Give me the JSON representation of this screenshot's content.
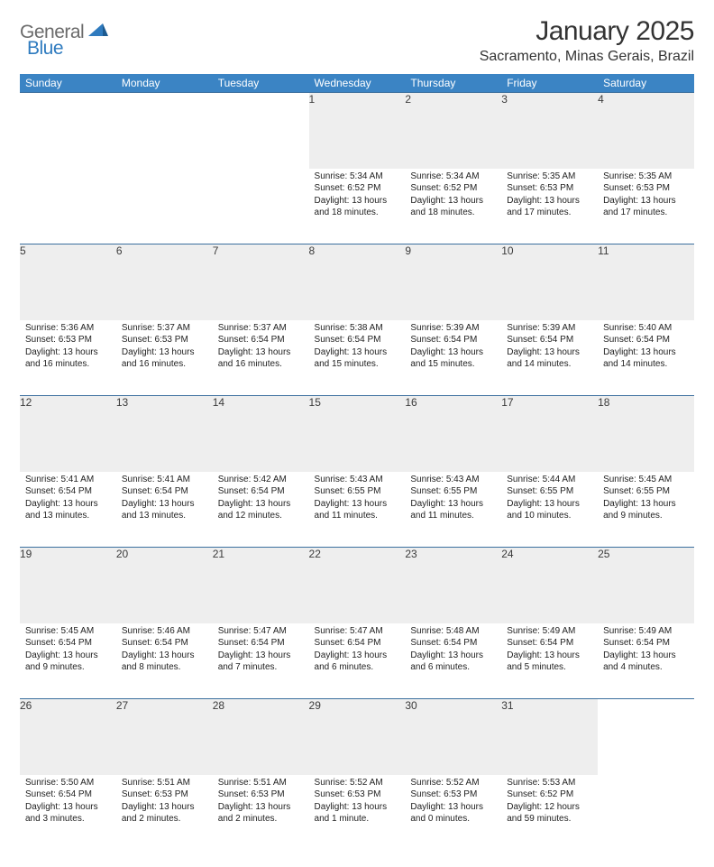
{
  "brand": {
    "text1": "General",
    "text2": "Blue",
    "logo_color": "#2f7bbf",
    "text_color": "#6b6b6b"
  },
  "header": {
    "month_title": "January 2025",
    "location": "Sacramento, Minas Gerais, Brazil"
  },
  "colors": {
    "header_bg": "#3b84c4",
    "header_text": "#ffffff",
    "daynum_bg": "#eeeeee",
    "border": "#3b6f9e"
  },
  "daynames": [
    "Sunday",
    "Monday",
    "Tuesday",
    "Wednesday",
    "Thursday",
    "Friday",
    "Saturday"
  ],
  "weeks": [
    {
      "nums": [
        "",
        "",
        "",
        "1",
        "2",
        "3",
        "4"
      ],
      "sunrise": [
        "",
        "",
        "",
        "Sunrise: 5:34 AM",
        "Sunrise: 5:34 AM",
        "Sunrise: 5:35 AM",
        "Sunrise: 5:35 AM"
      ],
      "sunset": [
        "",
        "",
        "",
        "Sunset: 6:52 PM",
        "Sunset: 6:52 PM",
        "Sunset: 6:53 PM",
        "Sunset: 6:53 PM"
      ],
      "day1": [
        "",
        "",
        "",
        "Daylight: 13 hours",
        "Daylight: 13 hours",
        "Daylight: 13 hours",
        "Daylight: 13 hours"
      ],
      "day2": [
        "",
        "",
        "",
        "and 18 minutes.",
        "and 18 minutes.",
        "and 17 minutes.",
        "and 17 minutes."
      ]
    },
    {
      "nums": [
        "5",
        "6",
        "7",
        "8",
        "9",
        "10",
        "11"
      ],
      "sunrise": [
        "Sunrise: 5:36 AM",
        "Sunrise: 5:37 AM",
        "Sunrise: 5:37 AM",
        "Sunrise: 5:38 AM",
        "Sunrise: 5:39 AM",
        "Sunrise: 5:39 AM",
        "Sunrise: 5:40 AM"
      ],
      "sunset": [
        "Sunset: 6:53 PM",
        "Sunset: 6:53 PM",
        "Sunset: 6:54 PM",
        "Sunset: 6:54 PM",
        "Sunset: 6:54 PM",
        "Sunset: 6:54 PM",
        "Sunset: 6:54 PM"
      ],
      "day1": [
        "Daylight: 13 hours",
        "Daylight: 13 hours",
        "Daylight: 13 hours",
        "Daylight: 13 hours",
        "Daylight: 13 hours",
        "Daylight: 13 hours",
        "Daylight: 13 hours"
      ],
      "day2": [
        "and 16 minutes.",
        "and 16 minutes.",
        "and 16 minutes.",
        "and 15 minutes.",
        "and 15 minutes.",
        "and 14 minutes.",
        "and 14 minutes."
      ]
    },
    {
      "nums": [
        "12",
        "13",
        "14",
        "15",
        "16",
        "17",
        "18"
      ],
      "sunrise": [
        "Sunrise: 5:41 AM",
        "Sunrise: 5:41 AM",
        "Sunrise: 5:42 AM",
        "Sunrise: 5:43 AM",
        "Sunrise: 5:43 AM",
        "Sunrise: 5:44 AM",
        "Sunrise: 5:45 AM"
      ],
      "sunset": [
        "Sunset: 6:54 PM",
        "Sunset: 6:54 PM",
        "Sunset: 6:54 PM",
        "Sunset: 6:55 PM",
        "Sunset: 6:55 PM",
        "Sunset: 6:55 PM",
        "Sunset: 6:55 PM"
      ],
      "day1": [
        "Daylight: 13 hours",
        "Daylight: 13 hours",
        "Daylight: 13 hours",
        "Daylight: 13 hours",
        "Daylight: 13 hours",
        "Daylight: 13 hours",
        "Daylight: 13 hours"
      ],
      "day2": [
        "and 13 minutes.",
        "and 13 minutes.",
        "and 12 minutes.",
        "and 11 minutes.",
        "and 11 minutes.",
        "and 10 minutes.",
        "and 9 minutes."
      ]
    },
    {
      "nums": [
        "19",
        "20",
        "21",
        "22",
        "23",
        "24",
        "25"
      ],
      "sunrise": [
        "Sunrise: 5:45 AM",
        "Sunrise: 5:46 AM",
        "Sunrise: 5:47 AM",
        "Sunrise: 5:47 AM",
        "Sunrise: 5:48 AM",
        "Sunrise: 5:49 AM",
        "Sunrise: 5:49 AM"
      ],
      "sunset": [
        "Sunset: 6:54 PM",
        "Sunset: 6:54 PM",
        "Sunset: 6:54 PM",
        "Sunset: 6:54 PM",
        "Sunset: 6:54 PM",
        "Sunset: 6:54 PM",
        "Sunset: 6:54 PM"
      ],
      "day1": [
        "Daylight: 13 hours",
        "Daylight: 13 hours",
        "Daylight: 13 hours",
        "Daylight: 13 hours",
        "Daylight: 13 hours",
        "Daylight: 13 hours",
        "Daylight: 13 hours"
      ],
      "day2": [
        "and 9 minutes.",
        "and 8 minutes.",
        "and 7 minutes.",
        "and 6 minutes.",
        "and 6 minutes.",
        "and 5 minutes.",
        "and 4 minutes."
      ]
    },
    {
      "nums": [
        "26",
        "27",
        "28",
        "29",
        "30",
        "31",
        ""
      ],
      "sunrise": [
        "Sunrise: 5:50 AM",
        "Sunrise: 5:51 AM",
        "Sunrise: 5:51 AM",
        "Sunrise: 5:52 AM",
        "Sunrise: 5:52 AM",
        "Sunrise: 5:53 AM",
        ""
      ],
      "sunset": [
        "Sunset: 6:54 PM",
        "Sunset: 6:53 PM",
        "Sunset: 6:53 PM",
        "Sunset: 6:53 PM",
        "Sunset: 6:53 PM",
        "Sunset: 6:52 PM",
        ""
      ],
      "day1": [
        "Daylight: 13 hours",
        "Daylight: 13 hours",
        "Daylight: 13 hours",
        "Daylight: 13 hours",
        "Daylight: 13 hours",
        "Daylight: 12 hours",
        ""
      ],
      "day2": [
        "and 3 minutes.",
        "and 2 minutes.",
        "and 2 minutes.",
        "and 1 minute.",
        "and 0 minutes.",
        "and 59 minutes.",
        ""
      ]
    }
  ]
}
